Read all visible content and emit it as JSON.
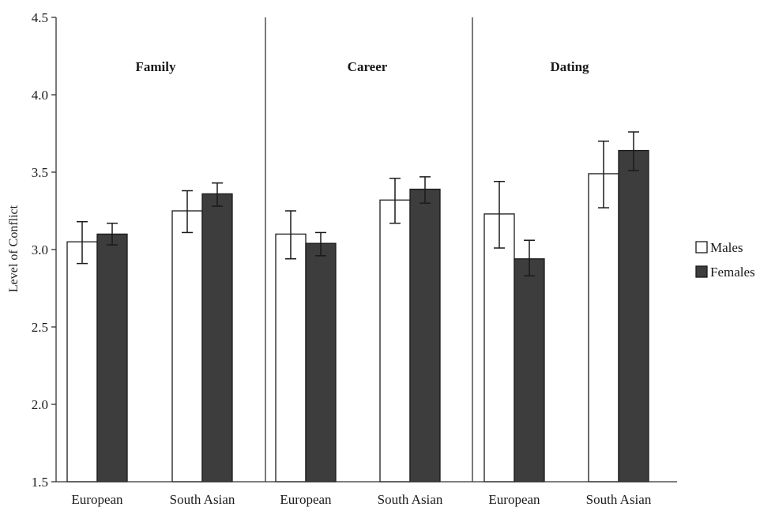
{
  "chart_data": {
    "type": "bar",
    "ylabel": "Level of Conflict",
    "xlabel": "",
    "ylim": [
      1.5,
      4.5
    ],
    "yticks": [
      "1.5",
      "2.0",
      "2.5",
      "3.0",
      "3.5",
      "4.0",
      "4.5"
    ],
    "grid": false,
    "legend": "right",
    "colors": {
      "Males": "#ffffff",
      "Females": "#3d3d3d",
      "outline": "#1a1a1a"
    },
    "series_names": [
      "Males",
      "Females"
    ],
    "panels": [
      {
        "title": "Family",
        "categories": [
          "European",
          "South Asian"
        ],
        "series": [
          {
            "name": "Males",
            "values": [
              3.05,
              3.25
            ],
            "err_low": [
              2.91,
              3.11
            ],
            "err_high": [
              3.18,
              3.38
            ]
          },
          {
            "name": "Females",
            "values": [
              3.1,
              3.36
            ],
            "err_low": [
              3.03,
              3.28
            ],
            "err_high": [
              3.17,
              3.43
            ]
          }
        ]
      },
      {
        "title": "Career",
        "categories": [
          "European",
          "South Asian"
        ],
        "series": [
          {
            "name": "Males",
            "values": [
              3.1,
              3.32
            ],
            "err_low": [
              2.94,
              3.17
            ],
            "err_high": [
              3.25,
              3.46
            ]
          },
          {
            "name": "Females",
            "values": [
              3.04,
              3.39
            ],
            "err_low": [
              2.96,
              3.3
            ],
            "err_high": [
              3.11,
              3.47
            ]
          }
        ]
      },
      {
        "title": "Dating",
        "categories": [
          "European",
          "South Asian"
        ],
        "series": [
          {
            "name": "Males",
            "values": [
              3.23,
              3.49
            ],
            "err_low": [
              3.01,
              3.27
            ],
            "err_high": [
              3.44,
              3.7
            ]
          },
          {
            "name": "Females",
            "values": [
              2.94,
              3.64
            ],
            "err_low": [
              2.83,
              3.51
            ],
            "err_high": [
              3.06,
              3.76
            ]
          }
        ]
      }
    ]
  }
}
